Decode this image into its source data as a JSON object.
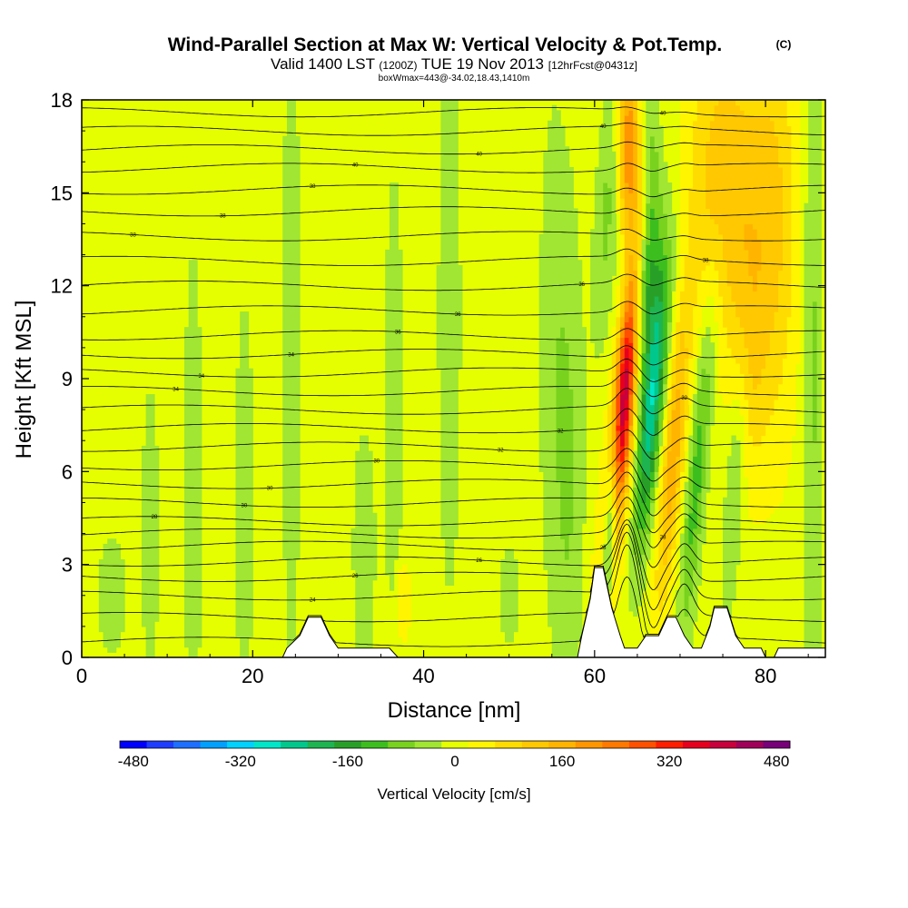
{
  "chart_data": {
    "type": "heatmap",
    "title": "Wind-Parallel Section at Max W: Vertical Velocity & Pot.Temp.",
    "title_mark": "(C)",
    "subtitle": {
      "valid": "Valid 1400 LST",
      "utc": "(1200Z)",
      "date": "TUE 19 Nov 2013",
      "forecast": "[12hrFcst@0431z]"
    },
    "box_info": "boxWmax=443@-34.02,18.43,1410m",
    "xlabel": "Distance [nm]",
    "ylabel": "Height [Kft MSL]",
    "xlim": [
      0,
      87
    ],
    "ylim": [
      0,
      18
    ],
    "x_ticks": [
      "0",
      "20",
      "40",
      "60",
      "80"
    ],
    "x_tick_values": [
      0,
      20,
      40,
      60,
      80
    ],
    "y_ticks": [
      "0",
      "3",
      "6",
      "9",
      "12",
      "15",
      "18"
    ],
    "y_tick_values": [
      0,
      3,
      6,
      9,
      12,
      15,
      18
    ],
    "max_w_cm_s": 443,
    "colorbar": {
      "label": "Vertical Velocity [cm/s]",
      "levels": [
        -480,
        -440,
        -400,
        -360,
        -320,
        -280,
        -240,
        -200,
        -160,
        -120,
        -80,
        -40,
        0,
        40,
        80,
        120,
        160,
        200,
        240,
        280,
        320,
        360,
        400,
        440,
        480
      ],
      "tick_labels": [
        "-480",
        "-320",
        "-160",
        "0",
        "160",
        "320",
        "480"
      ],
      "tick_values": [
        -480,
        -320,
        -160,
        0,
        160,
        320,
        480
      ],
      "colors": [
        "#0000ff",
        "#1e3cff",
        "#1e6eff",
        "#00a0ff",
        "#00d2ff",
        "#00e6c8",
        "#00c88c",
        "#1eb450",
        "#28a028",
        "#3cbe1e",
        "#78d21e",
        "#a0e632",
        "#e6ff00",
        "#fff500",
        "#ffdc00",
        "#ffc800",
        "#ffb400",
        "#ff9600",
        "#ff7800",
        "#ff5000",
        "#ff1e00",
        "#e6001e",
        "#c8003c",
        "#a0005a",
        "#780078"
      ]
    },
    "terrain": [
      {
        "x": 0,
        "h": 0
      },
      {
        "x": 23.5,
        "h": 0
      },
      {
        "x": 24,
        "h": 0.3
      },
      {
        "x": 25.5,
        "h": 0.7
      },
      {
        "x": 26.5,
        "h": 1.3
      },
      {
        "x": 28,
        "h": 1.3
      },
      {
        "x": 29,
        "h": 0.7
      },
      {
        "x": 30,
        "h": 0.3
      },
      {
        "x": 31,
        "h": 0.3
      },
      {
        "x": 36,
        "h": 0.3
      },
      {
        "x": 37,
        "h": 0
      },
      {
        "x": 58,
        "h": 0
      },
      {
        "x": 58.5,
        "h": 0.7
      },
      {
        "x": 59.5,
        "h": 1.9
      },
      {
        "x": 60,
        "h": 2.9
      },
      {
        "x": 61,
        "h": 2.9
      },
      {
        "x": 62,
        "h": 1.6
      },
      {
        "x": 63,
        "h": 0.7
      },
      {
        "x": 63.5,
        "h": 0.3
      },
      {
        "x": 65,
        "h": 0.3
      },
      {
        "x": 66,
        "h": 0.7
      },
      {
        "x": 67.5,
        "h": 0.7
      },
      {
        "x": 68.5,
        "h": 1.3
      },
      {
        "x": 69.5,
        "h": 1.3
      },
      {
        "x": 70.5,
        "h": 0.7
      },
      {
        "x": 71.5,
        "h": 0.3
      },
      {
        "x": 72.5,
        "h": 0.3
      },
      {
        "x": 73.5,
        "h": 1.0
      },
      {
        "x": 74,
        "h": 1.6
      },
      {
        "x": 75.5,
        "h": 1.6
      },
      {
        "x": 76.5,
        "h": 0.7
      },
      {
        "x": 77.5,
        "h": 0.3
      },
      {
        "x": 78,
        "h": 0.3
      },
      {
        "x": 79.5,
        "h": 0.3
      },
      {
        "x": 80,
        "h": 0
      },
      {
        "x": 81,
        "h": 0
      },
      {
        "x": 81.5,
        "h": 0.3
      },
      {
        "x": 87,
        "h": 0.3
      }
    ],
    "w_features": [
      {
        "x": 63.3,
        "y": 8.0,
        "sx": 0.9,
        "sy": 4.5,
        "tilt": 0.35,
        "amp": 440
      },
      {
        "x": 61.8,
        "y": 4.2,
        "sx": 0.6,
        "sy": 2.2,
        "tilt": 0.2,
        "amp": -340
      },
      {
        "x": 66.8,
        "y": 8.5,
        "sx": 0.9,
        "sy": 3.2,
        "tilt": 0.3,
        "amp": -260
      },
      {
        "x": 65.6,
        "y": 12.2,
        "sx": 1.0,
        "sy": 2.0,
        "tilt": 0.2,
        "amp": -220
      },
      {
        "x": 69.2,
        "y": 6.5,
        "sx": 0.9,
        "sy": 3.5,
        "tilt": 0.3,
        "amp": 170
      },
      {
        "x": 72.0,
        "y": 6.0,
        "sx": 0.8,
        "sy": 4.0,
        "tilt": 0.3,
        "amp": -120
      },
      {
        "x": 64.0,
        "y": 16.5,
        "sx": 0.9,
        "sy": 2.0,
        "tilt": 0.0,
        "amp": 230
      },
      {
        "x": 61.5,
        "y": 14.5,
        "sx": 1.0,
        "sy": 3.0,
        "tilt": 0.2,
        "amp": -70
      },
      {
        "x": 66.5,
        "y": 16.2,
        "sx": 0.9,
        "sy": 1.8,
        "tilt": 0.0,
        "amp": -120
      },
      {
        "x": 75.2,
        "y": 15.5,
        "sx": 3.0,
        "sy": 3.5,
        "tilt": 0.0,
        "amp": 130
      },
      {
        "x": 81.0,
        "y": 14.0,
        "sx": 2.0,
        "sy": 5.0,
        "tilt": 0.0,
        "amp": 100
      },
      {
        "x": 78.0,
        "y": 10.0,
        "sx": 1.5,
        "sy": 3.0,
        "tilt": 0.0,
        "amp": 80
      },
      {
        "x": 85.5,
        "y": 10.0,
        "sx": 0.8,
        "sy": 8.0,
        "tilt": 0.0,
        "amp": -70
      },
      {
        "x": 76.5,
        "y": 6.0,
        "sx": 0.8,
        "sy": 3.0,
        "tilt": 0.2,
        "amp": -70
      },
      {
        "x": 57.0,
        "y": 6.0,
        "sx": 1.2,
        "sy": 6.0,
        "tilt": 0.0,
        "amp": -60
      },
      {
        "x": 55.0,
        "y": 10.0,
        "sx": 1.2,
        "sy": 6.0,
        "tilt": 0.0,
        "amp": -40
      },
      {
        "x": 43.0,
        "y": 11.0,
        "sx": 1.0,
        "sy": 7.0,
        "tilt": 0.0,
        "amp": -45
      },
      {
        "x": 36.5,
        "y": 8.0,
        "sx": 0.8,
        "sy": 6.0,
        "tilt": 0.0,
        "amp": -45
      },
      {
        "x": 24.5,
        "y": 10.0,
        "sx": 0.8,
        "sy": 8.0,
        "tilt": 0.0,
        "amp": -45
      },
      {
        "x": 19.0,
        "y": 5.0,
        "sx": 0.8,
        "sy": 5.0,
        "tilt": 0.0,
        "amp": -45
      },
      {
        "x": 13.0,
        "y": 5.5,
        "sx": 0.8,
        "sy": 6.0,
        "tilt": 0.0,
        "amp": -45
      },
      {
        "x": 8.0,
        "y": 4.0,
        "sx": 0.8,
        "sy": 4.0,
        "tilt": 0.0,
        "amp": -40
      },
      {
        "x": 3.5,
        "y": 2.0,
        "sx": 1.2,
        "sy": 1.5,
        "tilt": 0.0,
        "amp": -45
      },
      {
        "x": 33.0,
        "y": 3.5,
        "sx": 1.0,
        "sy": 3.0,
        "tilt": 0.0,
        "amp": -45
      },
      {
        "x": 37.5,
        "y": 1.8,
        "sx": 0.6,
        "sy": 1.0,
        "tilt": 0.0,
        "amp": 70
      },
      {
        "x": 50.0,
        "y": 2.0,
        "sx": 1.0,
        "sy": 1.5,
        "tilt": 0.0,
        "amp": -35
      }
    ],
    "theta_lines": [
      {
        "base": 0.5,
        "min": 0.3,
        "amp": 2.0,
        "lab": ""
      },
      {
        "base": 1.3,
        "min": 0.3,
        "amp": 2.2,
        "lab": ""
      },
      {
        "base": 2.0,
        "min": 0.3,
        "amp": 2.0,
        "lab": "24"
      },
      {
        "base": 2.6,
        "min": 0.4,
        "amp": 1.8,
        "lab": "26"
      },
      {
        "base": 3.1,
        "min": 0.5,
        "amp": 1.5,
        "lab": "26"
      },
      {
        "base": 3.6,
        "min": 0.5,
        "amp": 1.3,
        "lab": "28"
      },
      {
        "base": 4.0,
        "min": 0.6,
        "amp": 1.1,
        "lab": "28"
      },
      {
        "base": 4.4,
        "min": 0.7,
        "amp": 1.0,
        "lab": "28"
      },
      {
        "base": 5.0,
        "min": 0.8,
        "amp": 0.9,
        "lab": "30"
      },
      {
        "base": 5.6,
        "min": 0.9,
        "amp": 0.8,
        "lab": "30"
      },
      {
        "base": 6.2,
        "min": 1.0,
        "amp": 0.7,
        "lab": "30"
      },
      {
        "base": 6.8,
        "min": 1.0,
        "amp": 0.65,
        "lab": "32"
      },
      {
        "base": 7.4,
        "min": 1.1,
        "amp": 0.6,
        "lab": "32"
      },
      {
        "base": 8.0,
        "min": 1.2,
        "amp": 0.55,
        "lab": "32"
      },
      {
        "base": 8.6,
        "min": 1.3,
        "amp": 0.5,
        "lab": "34"
      },
      {
        "base": 9.2,
        "min": 1.4,
        "amp": 0.45,
        "lab": "34"
      },
      {
        "base": 9.8,
        "min": 1.5,
        "amp": 0.4,
        "lab": "34"
      },
      {
        "base": 10.4,
        "min": 1.6,
        "amp": 0.35,
        "lab": "36"
      },
      {
        "base": 11.2,
        "min": 1.8,
        "amp": 0.3,
        "lab": "36"
      },
      {
        "base": 12.0,
        "min": 2.0,
        "amp": 0.25,
        "lab": "36"
      },
      {
        "base": 12.8,
        "min": 2.2,
        "amp": 0.25,
        "lab": "38"
      },
      {
        "base": 13.6,
        "min": 2.4,
        "amp": 0.2,
        "lab": "38"
      },
      {
        "base": 14.4,
        "min": 2.6,
        "amp": 0.2,
        "lab": "38"
      },
      {
        "base": 15.1,
        "min": 2.6,
        "amp": 0.2,
        "lab": "38"
      },
      {
        "base": 15.8,
        "min": 2.4,
        "amp": 0.2,
        "lab": "40"
      },
      {
        "base": 16.4,
        "min": 2.0,
        "amp": 0.15,
        "lab": "40"
      },
      {
        "base": 17.0,
        "min": 1.5,
        "amp": 0.1,
        "lab": "40"
      },
      {
        "base": 17.6,
        "min": 1.0,
        "amp": 0.1,
        "lab": "40"
      }
    ]
  }
}
